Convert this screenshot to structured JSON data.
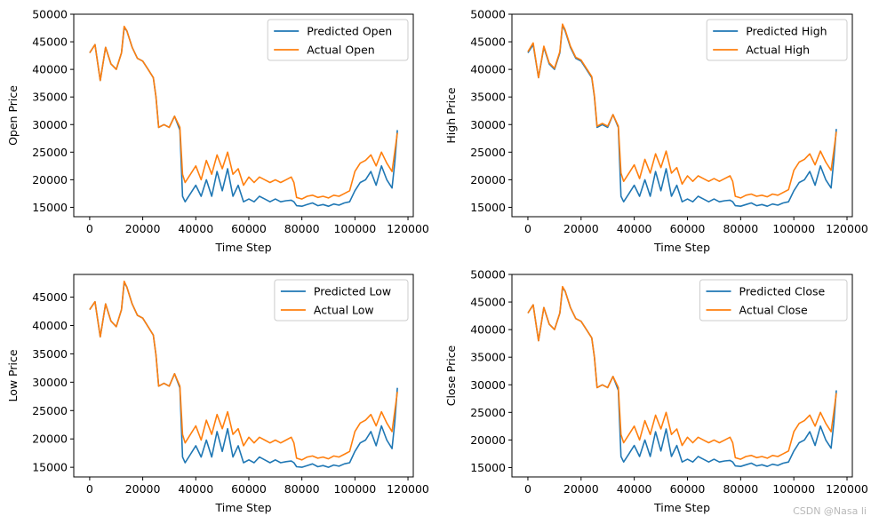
{
  "figure": {
    "watermark": "CSDN @Nasa li"
  },
  "colors": {
    "predicted": "#1f77b4",
    "actual": "#ff7f0e"
  },
  "chart_data": [
    {
      "type": "line",
      "xlabel": "Time Step",
      "ylabel": "Open Price",
      "xlim": [
        -6000,
        122000
      ],
      "ylim": [
        13300,
        50000
      ],
      "xticks": [
        0,
        20000,
        40000,
        60000,
        80000,
        100000,
        120000
      ],
      "yticks": [
        15000,
        20000,
        25000,
        30000,
        35000,
        40000,
        45000,
        50000
      ],
      "legend_position": "top-right",
      "x": [
        0,
        2000,
        4000,
        6000,
        8000,
        10000,
        12000,
        13000,
        14000,
        16000,
        18000,
        20000,
        22000,
        24000,
        25000,
        26000,
        28000,
        30000,
        32000,
        34000,
        35000,
        36000,
        38000,
        40000,
        42000,
        44000,
        46000,
        48000,
        50000,
        52000,
        54000,
        56000,
        58000,
        60000,
        62000,
        64000,
        66000,
        68000,
        70000,
        72000,
        74000,
        76000,
        77000,
        78000,
        80000,
        82000,
        84000,
        86000,
        88000,
        90000,
        92000,
        94000,
        96000,
        98000,
        100000,
        102000,
        104000,
        106000,
        108000,
        110000,
        112000,
        114000,
        115000,
        116000
      ],
      "series": [
        {
          "name": "Predicted Open",
          "values": [
            43000,
            44500,
            38000,
            44000,
            41000,
            40000,
            43000,
            47500,
            47000,
            44000,
            42000,
            41500,
            40000,
            38500,
            35000,
            29500,
            30000,
            29500,
            31500,
            29000,
            17000,
            16000,
            17500,
            19000,
            17000,
            20000,
            17000,
            21500,
            18000,
            22000,
            17000,
            19000,
            16000,
            16500,
            16000,
            17000,
            16500,
            16000,
            16500,
            16000,
            16200,
            16300,
            16000,
            15300,
            15200,
            15500,
            15800,
            15300,
            15500,
            15200,
            15600,
            15400,
            15800,
            16000,
            18000,
            19500,
            20000,
            21500,
            19000,
            22500,
            20000,
            18500,
            23000,
            29000
          ]
        },
        {
          "name": "Actual Open",
          "values": [
            43000,
            44500,
            38000,
            44000,
            41000,
            40000,
            43000,
            47800,
            47000,
            44000,
            42000,
            41500,
            40000,
            38500,
            35000,
            29500,
            30000,
            29500,
            31500,
            29500,
            21000,
            19500,
            21000,
            22500,
            20000,
            23500,
            21000,
            24500,
            22000,
            25000,
            21000,
            22000,
            19000,
            20500,
            19500,
            20500,
            20000,
            19500,
            20000,
            19500,
            20000,
            20500,
            19500,
            16800,
            16500,
            17000,
            17200,
            16800,
            17000,
            16700,
            17200,
            17000,
            17500,
            18000,
            21500,
            23000,
            23500,
            24500,
            22500,
            25000,
            23000,
            21500,
            25000,
            28500
          ]
        }
      ]
    },
    {
      "type": "line",
      "xlabel": "Time Step",
      "ylabel": "High Price",
      "xlim": [
        -6000,
        122000
      ],
      "ylim": [
        13300,
        50000
      ],
      "xticks": [
        0,
        20000,
        40000,
        60000,
        80000,
        100000,
        120000
      ],
      "yticks": [
        15000,
        20000,
        25000,
        30000,
        35000,
        40000,
        45000,
        50000
      ],
      "legend_position": "top-right",
      "x": [
        0,
        2000,
        4000,
        6000,
        8000,
        10000,
        12000,
        13000,
        14000,
        16000,
        18000,
        20000,
        22000,
        24000,
        25000,
        26000,
        28000,
        30000,
        32000,
        34000,
        35000,
        36000,
        38000,
        40000,
        42000,
        44000,
        46000,
        48000,
        50000,
        52000,
        54000,
        56000,
        58000,
        60000,
        62000,
        64000,
        66000,
        68000,
        70000,
        72000,
        74000,
        76000,
        77000,
        78000,
        80000,
        82000,
        84000,
        86000,
        88000,
        90000,
        92000,
        94000,
        96000,
        98000,
        100000,
        102000,
        104000,
        106000,
        108000,
        110000,
        112000,
        114000,
        115000,
        116000
      ],
      "series": [
        {
          "name": "Predicted High",
          "values": [
            43000,
            44500,
            38500,
            44000,
            41000,
            40000,
            43000,
            48000,
            47000,
            44000,
            42000,
            41500,
            40000,
            38500,
            35000,
            29500,
            30000,
            29500,
            31800,
            29500,
            17000,
            16000,
            17500,
            19000,
            17000,
            20000,
            17000,
            21500,
            18000,
            22000,
            17000,
            19000,
            16000,
            16500,
            16000,
            17000,
            16500,
            16000,
            16500,
            16000,
            16200,
            16300,
            16000,
            15300,
            15200,
            15500,
            15800,
            15300,
            15500,
            15200,
            15600,
            15400,
            15800,
            16000,
            18000,
            19500,
            20000,
            21500,
            19000,
            22500,
            20000,
            18500,
            23500,
            29200
          ]
        },
        {
          "name": "Actual High",
          "values": [
            43200,
            44800,
            38500,
            44200,
            41200,
            40200,
            43200,
            48200,
            47200,
            44200,
            42200,
            41700,
            40200,
            38700,
            35200,
            29700,
            30200,
            29700,
            31800,
            29700,
            21200,
            19700,
            21200,
            22700,
            20200,
            23700,
            21200,
            24700,
            22200,
            25200,
            21200,
            22200,
            19200,
            20700,
            19700,
            20700,
            20200,
            19700,
            20200,
            19700,
            20200,
            20700,
            19700,
            17000,
            16700,
            17200,
            17400,
            17000,
            17200,
            16900,
            17400,
            17200,
            17700,
            18200,
            21700,
            23200,
            23700,
            24700,
            22700,
            25200,
            23200,
            21700,
            25200,
            28700
          ]
        }
      ]
    },
    {
      "type": "line",
      "xlabel": "Time Step",
      "ylabel": "Low Price",
      "xlim": [
        -6000,
        122000
      ],
      "ylim": [
        13300,
        49000
      ],
      "xticks": [
        0,
        20000,
        40000,
        60000,
        80000,
        100000,
        120000
      ],
      "yticks": [
        15000,
        20000,
        25000,
        30000,
        35000,
        40000,
        45000
      ],
      "legend_position": "top-right",
      "x": [
        0,
        2000,
        4000,
        6000,
        8000,
        10000,
        12000,
        13000,
        14000,
        16000,
        18000,
        20000,
        22000,
        24000,
        25000,
        26000,
        28000,
        30000,
        32000,
        34000,
        35000,
        36000,
        38000,
        40000,
        42000,
        44000,
        46000,
        48000,
        50000,
        52000,
        54000,
        56000,
        58000,
        60000,
        62000,
        64000,
        66000,
        68000,
        70000,
        72000,
        74000,
        76000,
        77000,
        78000,
        80000,
        82000,
        84000,
        86000,
        88000,
        90000,
        92000,
        94000,
        96000,
        98000,
        100000,
        102000,
        104000,
        106000,
        108000,
        110000,
        112000,
        114000,
        115000,
        116000
      ],
      "series": [
        {
          "name": "Predicted Low",
          "values": [
            42800,
            44200,
            38000,
            43800,
            40800,
            39800,
            42800,
            47500,
            46800,
            43800,
            41800,
            41300,
            39800,
            38300,
            34800,
            29300,
            29800,
            29300,
            31500,
            29000,
            16800,
            15800,
            17300,
            18800,
            16800,
            19800,
            16800,
            21300,
            17800,
            21800,
            16800,
            18800,
            15800,
            16300,
            15800,
            16800,
            16300,
            15800,
            16300,
            15800,
            16000,
            16100,
            15800,
            15100,
            15000,
            15300,
            15600,
            15100,
            15300,
            15000,
            15400,
            15200,
            15600,
            15800,
            17800,
            19300,
            19800,
            21300,
            18800,
            22300,
            19800,
            18300,
            22800,
            29000
          ]
        },
        {
          "name": "Actual Low",
          "values": [
            42800,
            44200,
            38000,
            43800,
            40800,
            39800,
            42800,
            47800,
            46800,
            43800,
            41800,
            41300,
            39800,
            38300,
            34800,
            29300,
            29800,
            29300,
            31500,
            29300,
            20800,
            19300,
            20800,
            22300,
            19800,
            23300,
            20800,
            24300,
            21800,
            24800,
            20800,
            21800,
            18800,
            20300,
            19300,
            20300,
            19800,
            19300,
            19800,
            19300,
            19800,
            20300,
            19300,
            16600,
            16300,
            16800,
            17000,
            16600,
            16800,
            16500,
            17000,
            16800,
            17300,
            17800,
            21300,
            22800,
            23300,
            24300,
            22300,
            24800,
            22800,
            21300,
            24800,
            28300
          ]
        }
      ]
    },
    {
      "type": "line",
      "xlabel": "Time Step",
      "ylabel": "Close Price",
      "xlim": [
        -6000,
        122000
      ],
      "ylim": [
        13300,
        50000
      ],
      "xticks": [
        0,
        20000,
        40000,
        60000,
        80000,
        100000,
        120000
      ],
      "yticks": [
        15000,
        20000,
        25000,
        30000,
        35000,
        40000,
        45000,
        50000
      ],
      "legend_position": "top-right",
      "x": [
        0,
        2000,
        4000,
        6000,
        8000,
        10000,
        12000,
        13000,
        14000,
        16000,
        18000,
        20000,
        22000,
        24000,
        25000,
        26000,
        28000,
        30000,
        32000,
        34000,
        35000,
        36000,
        38000,
        40000,
        42000,
        44000,
        46000,
        48000,
        50000,
        52000,
        54000,
        56000,
        58000,
        60000,
        62000,
        64000,
        66000,
        68000,
        70000,
        72000,
        74000,
        76000,
        77000,
        78000,
        80000,
        82000,
        84000,
        86000,
        88000,
        90000,
        92000,
        94000,
        96000,
        98000,
        100000,
        102000,
        104000,
        106000,
        108000,
        110000,
        112000,
        114000,
        115000,
        116000
      ],
      "series": [
        {
          "name": "Predicted Close",
          "values": [
            43000,
            44500,
            38000,
            44000,
            41000,
            40000,
            43000,
            47500,
            47000,
            44000,
            42000,
            41500,
            40000,
            38500,
            35000,
            29500,
            30000,
            29500,
            31500,
            29000,
            17000,
            16000,
            17500,
            19000,
            17000,
            20000,
            17000,
            21500,
            18000,
            22000,
            17000,
            19000,
            16000,
            16500,
            16000,
            17000,
            16500,
            16000,
            16500,
            16000,
            16200,
            16300,
            16000,
            15300,
            15200,
            15500,
            15800,
            15300,
            15500,
            15200,
            15600,
            15400,
            15800,
            16000,
            18000,
            19500,
            20000,
            21500,
            19000,
            22500,
            20000,
            18500,
            23000,
            29000
          ]
        },
        {
          "name": "Actual Close",
          "values": [
            43000,
            44500,
            38000,
            44000,
            41000,
            40000,
            43000,
            47800,
            47000,
            44000,
            42000,
            41500,
            40000,
            38500,
            35000,
            29500,
            30000,
            29500,
            31500,
            29500,
            21000,
            19500,
            21000,
            22500,
            20000,
            23500,
            21000,
            24500,
            22000,
            25000,
            21000,
            22000,
            19000,
            20500,
            19500,
            20500,
            20000,
            19500,
            20000,
            19500,
            20000,
            20500,
            19500,
            16800,
            16500,
            17000,
            17200,
            16800,
            17000,
            16700,
            17200,
            17000,
            17500,
            18000,
            21500,
            23000,
            23500,
            24500,
            22500,
            25000,
            23000,
            21500,
            25000,
            28500
          ]
        }
      ]
    }
  ]
}
